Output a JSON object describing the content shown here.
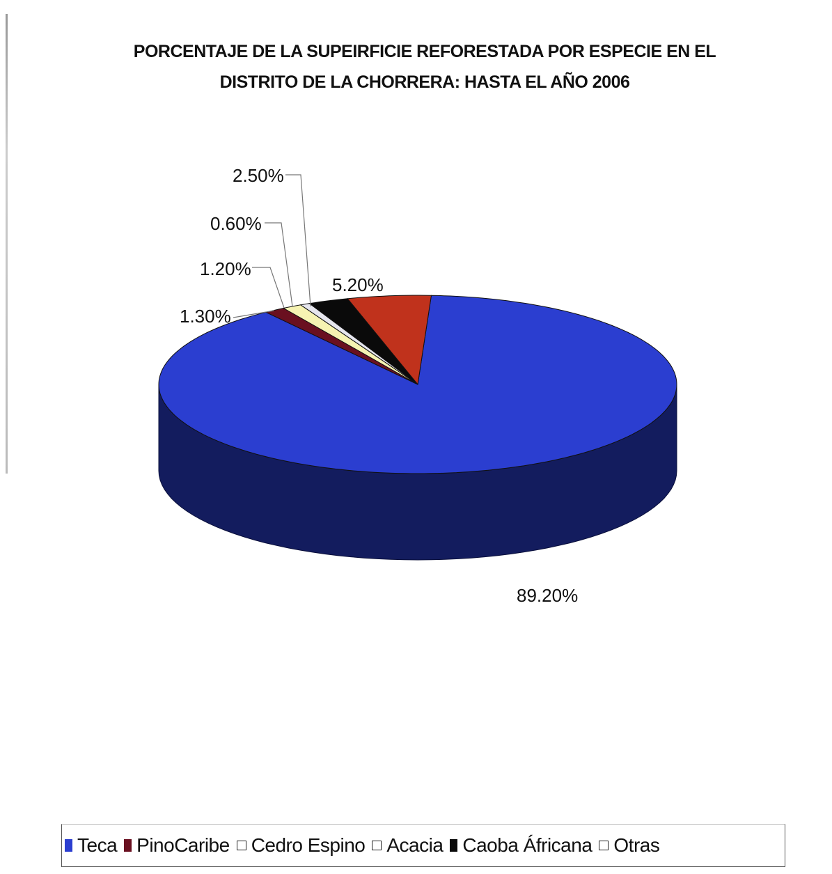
{
  "chart_data": {
    "type": "pie",
    "title_lines": [
      "PORCENTAJE DE LA SUPEIRFICIE REFORESTADA POR ESPECIE EN EL",
      "DISTRITO DE LA  CHORRERA: HASTA EL AÑO 2006"
    ],
    "slices": [
      {
        "name": "Teca",
        "value": 89.2,
        "label": "89.20%",
        "color": "#2b3ed0"
      },
      {
        "name": "PinoCaribe",
        "value": 1.3,
        "label": "1.30%",
        "color": "#6a1020"
      },
      {
        "name": "Cedro Espino",
        "value": 1.2,
        "label": "1.20%",
        "color": "#f6f3b2"
      },
      {
        "name": "Acacia",
        "value": 0.6,
        "label": "0.60%",
        "color": "#e6e6ee"
      },
      {
        "name": "Caoba Áfricana",
        "value": 2.5,
        "label": "2.50%",
        "color": "#0a0a0a"
      },
      {
        "name": "Otras",
        "value": 5.2,
        "label": "5.20%",
        "color": "#c0321c"
      }
    ],
    "legend_position": "bottom",
    "three_d": true
  }
}
